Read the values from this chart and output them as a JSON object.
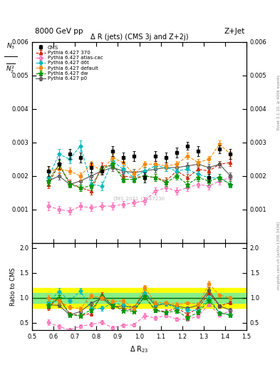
{
  "title": "Δ R (jets) (CMS 3j and Z+2j)",
  "header_left": "8000 GeV pp",
  "header_right": "Z+Jet",
  "ylabel_main": "N$_3$/N$_2^2$",
  "ylabel_ratio": "Ratio to CMS",
  "xlabel": "Δ R$_{23}$",
  "watermark": "CMS_2021_I1847230",
  "right_label_top": "Rivet 3.1.10, ≥ 400k events",
  "right_label_bottom": "mcplots.cern.ch [arXiv:1306.3436]",
  "ylim_main": [
    0.0,
    0.006
  ],
  "ylim_ratio": [
    0.35,
    2.1
  ],
  "yticks_main": [
    0.001,
    0.002,
    0.003,
    0.004,
    0.005,
    0.006
  ],
  "yticks_ratio": [
    0.5,
    1.0,
    1.5,
    2.0
  ],
  "xlim": [
    0.5,
    1.5
  ],
  "xticks": [
    0.5,
    0.6,
    0.7,
    0.8,
    0.9,
    1.0,
    1.1,
    1.2,
    1.3,
    1.4,
    1.5
  ],
  "x": [
    0.575,
    0.625,
    0.675,
    0.725,
    0.775,
    0.825,
    0.875,
    0.925,
    0.975,
    1.025,
    1.075,
    1.125,
    1.175,
    1.225,
    1.275,
    1.325,
    1.375,
    1.425
  ],
  "cms_y": [
    0.00215,
    0.00235,
    0.00265,
    0.00255,
    0.00225,
    0.00215,
    0.00275,
    0.00255,
    0.0026,
    0.00195,
    0.0026,
    0.00255,
    0.0027,
    0.0029,
    0.00275,
    0.00195,
    0.0028,
    0.00265
  ],
  "cms_yerr": [
    0.00015,
    0.00015,
    0.00015,
    0.00015,
    0.00015,
    0.00012,
    0.00015,
    0.00015,
    0.00015,
    0.00015,
    0.00015,
    0.00015,
    0.00015,
    0.00012,
    0.00015,
    0.00012,
    0.00012,
    0.00015
  ],
  "py370_y": [
    0.00175,
    0.00235,
    0.0018,
    0.00165,
    0.00155,
    0.0023,
    0.0023,
    0.002,
    0.00195,
    0.002,
    0.00195,
    0.00185,
    0.00215,
    0.00195,
    0.0022,
    0.00215,
    0.00235,
    0.0024
  ],
  "py370_yerr": [
    0.00012,
    0.00012,
    0.0001,
    0.0001,
    0.0001,
    0.0001,
    0.0001,
    0.0001,
    0.0001,
    0.0001,
    0.0001,
    0.0001,
    0.0001,
    0.0001,
    0.0001,
    0.0001,
    0.0001,
    0.0001
  ],
  "pyatlas_y": [
    0.0011,
    0.001,
    0.00095,
    0.0011,
    0.00105,
    0.0011,
    0.0011,
    0.00115,
    0.0012,
    0.00125,
    0.00155,
    0.00165,
    0.00155,
    0.00165,
    0.00175,
    0.0017,
    0.00185,
    0.00195
  ],
  "pyatlas_yerr": [
    0.00012,
    0.0001,
    0.0001,
    0.0001,
    0.0001,
    0.0001,
    0.0001,
    0.0001,
    0.0001,
    0.0001,
    0.0001,
    0.0001,
    0.0001,
    0.0001,
    0.0001,
    0.0001,
    0.0001,
    0.0001
  ],
  "pyd6t_y": [
    0.00195,
    0.00265,
    0.0025,
    0.0029,
    0.00175,
    0.0017,
    0.00245,
    0.0022,
    0.00195,
    0.00215,
    0.0023,
    0.00225,
    0.00215,
    0.0022,
    0.00205,
    0.00195,
    0.00195,
    0.00175
  ],
  "pyd6t_yerr": [
    0.00015,
    0.00015,
    0.00012,
    0.00015,
    0.00012,
    0.00012,
    0.00012,
    0.00012,
    0.0001,
    0.00012,
    0.0001,
    0.0001,
    0.0001,
    0.0001,
    0.0001,
    0.0001,
    0.0001,
    0.0001
  ],
  "pydefault_y": [
    0.00215,
    0.0022,
    0.00215,
    0.002,
    0.00235,
    0.00215,
    0.00255,
    0.0024,
    0.00205,
    0.00235,
    0.00235,
    0.0023,
    0.00235,
    0.0026,
    0.0024,
    0.0025,
    0.00295,
    0.00265
  ],
  "pydefault_yerr": [
    0.00012,
    0.00012,
    0.0001,
    0.0001,
    0.0001,
    0.0001,
    0.0001,
    0.0001,
    0.0001,
    0.0001,
    0.0001,
    0.0001,
    0.0001,
    0.0001,
    0.0001,
    0.0001,
    0.0001,
    0.0001
  ],
  "pydw_y": [
    0.00185,
    0.00235,
    0.00175,
    0.00165,
    0.0017,
    0.0022,
    0.00235,
    0.0019,
    0.0019,
    0.002,
    0.00195,
    0.0018,
    0.002,
    0.00175,
    0.00195,
    0.00185,
    0.00195,
    0.00175
  ],
  "pydw_yerr": [
    0.00012,
    0.00012,
    0.0001,
    0.0001,
    0.0001,
    0.0001,
    0.0001,
    0.0001,
    0.0001,
    0.0001,
    0.0001,
    0.0001,
    0.0001,
    0.0001,
    0.0001,
    0.0001,
    0.0001,
    0.0001
  ],
  "pyp0_y": [
    0.00185,
    0.002,
    0.00175,
    0.00185,
    0.002,
    0.00215,
    0.00225,
    0.00215,
    0.0021,
    0.00215,
    0.0022,
    0.00225,
    0.00225,
    0.0023,
    0.00235,
    0.00225,
    0.00235,
    0.002
  ],
  "pyp0_yerr": [
    0.00012,
    0.0001,
    0.0001,
    0.0001,
    0.0001,
    0.0001,
    0.0001,
    0.0001,
    0.0001,
    0.0001,
    0.0001,
    0.0001,
    0.0001,
    0.0001,
    0.0001,
    0.0001,
    0.0001,
    0.0001
  ],
  "color_cms": "#000000",
  "color_370": "#cc2200",
  "color_atlas": "#ff69b4",
  "color_d6t": "#00bbbb",
  "color_default": "#ff8800",
  "color_dw": "#009900",
  "color_p0": "#555555",
  "band_green": 0.1,
  "band_yellow": 0.2
}
